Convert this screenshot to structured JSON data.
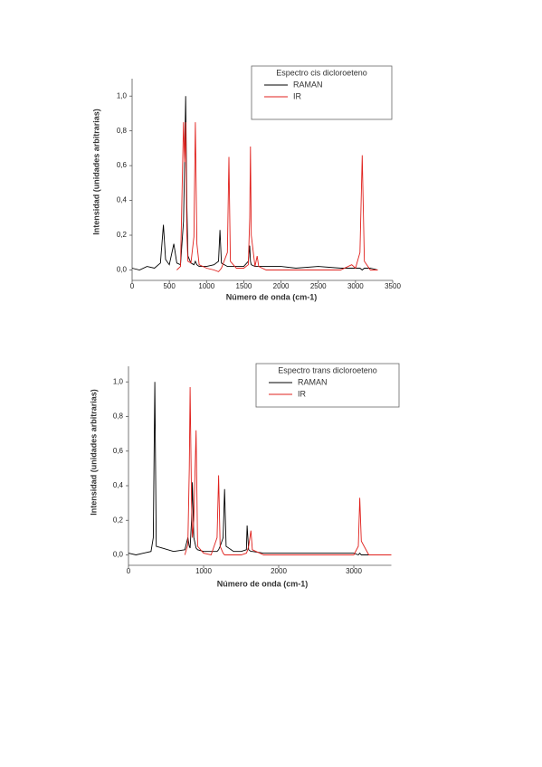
{
  "chart_data": [
    {
      "type": "line",
      "legend_title": "Espectro cis dicloroeteno",
      "x_label": "Número de onda (cm-1)",
      "y_label": "Intensidad (unidades arbitrarias)",
      "legend": "upper right",
      "xlim": [
        0,
        3500
      ],
      "xticks": [
        0,
        500,
        1000,
        1500,
        2000,
        2500,
        3000,
        3500
      ],
      "ylim": [
        -0.06,
        1.1
      ],
      "yticks": [
        {
          "value": 0,
          "label": "0,0"
        },
        {
          "value": 0.2,
          "label": "0,2"
        },
        {
          "value": 0.4,
          "label": "0,4"
        },
        {
          "value": 0.6,
          "label": "0,6"
        },
        {
          "value": 0.8,
          "label": "0,8"
        },
        {
          "value": 1.0,
          "label": "1,0"
        }
      ],
      "x": [
        0,
        100,
        200,
        300,
        380,
        420,
        450,
        500,
        560,
        600,
        650,
        690,
        705,
        720,
        735,
        750,
        790,
        830,
        850,
        870,
        900,
        1000,
        1100,
        1160,
        1180,
        1200,
        1280,
        1300,
        1320,
        1400,
        1500,
        1560,
        1580,
        1590,
        1600,
        1650,
        1680,
        1700,
        1800,
        2000,
        2200,
        2500,
        2800,
        2950,
        3000,
        3060,
        3090,
        3120,
        3200,
        3300
      ],
      "series": [
        {
          "name": "RAMAN",
          "color": "#000000",
          "values": [
            0.01,
            0.0,
            0.02,
            0.01,
            0.04,
            0.26,
            0.06,
            0.03,
            0.15,
            0.04,
            0.03,
            0.28,
            0.6,
            1.0,
            0.37,
            0.08,
            0.04,
            0.03,
            0.05,
            0.03,
            0.02,
            0.02,
            0.03,
            0.05,
            0.23,
            0.04,
            0.02,
            0.02,
            0.02,
            0.02,
            0.02,
            0.05,
            0.14,
            0.05,
            0.03,
            0.02,
            0.02,
            0.02,
            0.02,
            0.02,
            0.01,
            0.02,
            0.01,
            0.01,
            0.01,
            0.01,
            0.0,
            0.01,
            0.01,
            0.0
          ]
        },
        {
          "name": "IR",
          "color": "#e0201c",
          "values": [
            null,
            null,
            null,
            null,
            null,
            null,
            null,
            null,
            null,
            0.0,
            0.02,
            0.85,
            0.62,
            0.85,
            0.2,
            0.05,
            0.04,
            0.19,
            0.85,
            0.15,
            0.03,
            0.01,
            0.0,
            -0.01,
            0.0,
            0.01,
            0.1,
            0.65,
            0.05,
            0.01,
            0.01,
            0.03,
            0.3,
            0.71,
            0.2,
            0.02,
            0.08,
            0.02,
            0.0,
            0.0,
            0.0,
            0.0,
            0.0,
            0.03,
            0.01,
            0.1,
            0.66,
            0.05,
            0.0,
            0.0
          ]
        }
      ]
    },
    {
      "type": "line",
      "legend_title": "Espectro trans dicloroeteno",
      "x_label": "Número de onda (cm-1)",
      "y_label": "Intensidad (unidades arbitrarias)",
      "legend": "upper right",
      "xlim": [
        0,
        3500
      ],
      "xticks": [
        0,
        1000,
        2000,
        3000
      ],
      "ylim": [
        -0.06,
        1.09
      ],
      "yticks": [
        {
          "value": 0,
          "label": "0,0"
        },
        {
          "value": 0.2,
          "label": "0,2"
        },
        {
          "value": 0.4,
          "label": "0,4"
        },
        {
          "value": 0.6,
          "label": "0,6"
        },
        {
          "value": 0.8,
          "label": "0,8"
        },
        {
          "value": 1.0,
          "label": "1,0"
        }
      ],
      "x": [
        0,
        100,
        200,
        300,
        330,
        350,
        370,
        450,
        600,
        750,
        790,
        810,
        820,
        840,
        850,
        870,
        900,
        920,
        1000,
        1100,
        1180,
        1200,
        1220,
        1260,
        1280,
        1300,
        1400,
        1500,
        1570,
        1580,
        1600,
        1630,
        1650,
        1800,
        2000,
        2500,
        3000,
        3060,
        3080,
        3100,
        3200,
        3300,
        3400,
        3500
      ],
      "series": [
        {
          "name": "RAMAN",
          "color": "#000000",
          "values": [
            0.01,
            0.0,
            0.01,
            0.02,
            0.1,
            1.0,
            0.05,
            0.04,
            0.02,
            0.03,
            0.1,
            0.05,
            0.04,
            0.2,
            0.42,
            0.1,
            0.04,
            0.03,
            0.02,
            0.02,
            0.02,
            0.03,
            0.05,
            0.1,
            0.38,
            0.05,
            0.02,
            0.02,
            0.03,
            0.17,
            0.03,
            0.02,
            0.02,
            0.01,
            0.01,
            0.01,
            0.01,
            0.0,
            0.01,
            0.0,
            0.0,
            0.0,
            null,
            null
          ]
        },
        {
          "name": "IR",
          "color": "#e0201c",
          "values": [
            null,
            null,
            null,
            null,
            null,
            null,
            null,
            null,
            null,
            0.0,
            0.06,
            0.5,
            0.97,
            0.3,
            0.1,
            0.2,
            0.72,
            0.05,
            0.01,
            0.0,
            0.1,
            0.46,
            0.05,
            0.01,
            0.0,
            0.0,
            0.0,
            0.0,
            0.01,
            0.02,
            0.05,
            0.14,
            0.03,
            0.0,
            0.0,
            0.0,
            0.0,
            0.05,
            0.33,
            0.08,
            0.0,
            0.0,
            0.0,
            0.0
          ]
        }
      ]
    }
  ]
}
